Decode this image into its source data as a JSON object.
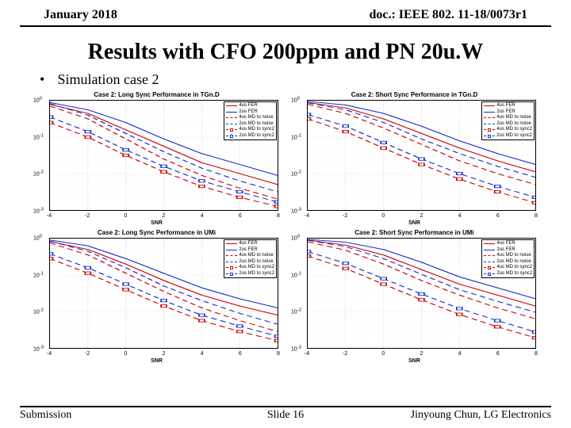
{
  "header": {
    "date": "January 2018",
    "doc": "doc.: IEEE 802. 11-18/0073r1"
  },
  "title": "Results with CFO 200ppm and PN 20u.W",
  "bullet": "Simulation case 2",
  "footer": {
    "left": "Submission",
    "mid": "Slide 16",
    "right": "Jinyoung Chun, LG Electronics"
  },
  "axis": {
    "xticks": [
      -4,
      -2,
      0,
      2,
      4,
      6,
      8
    ],
    "xlim": [
      -4,
      8
    ],
    "yexp": [
      0,
      -1,
      -2,
      -3
    ],
    "ylim_exp": [
      -3,
      0
    ],
    "xlabel": "SNR"
  },
  "legend_items": [
    {
      "label": "4us FER",
      "color": "#cc0000",
      "dash": "solid",
      "marker": false
    },
    {
      "label": "2us FER",
      "color": "#1030cc",
      "dash": "solid",
      "marker": false
    },
    {
      "label": "4us MD to noise",
      "color": "#cc0000",
      "dash": "dashed",
      "marker": false
    },
    {
      "label": "2us MD to noise",
      "color": "#1030cc",
      "dash": "dashed",
      "marker": false
    },
    {
      "label": "4us MD to sync2",
      "color": "#cc0000",
      "dash": "dashed",
      "marker": true
    },
    {
      "label": "2us MD to sync2",
      "color": "#1030cc",
      "dash": "dashed",
      "marker": true
    }
  ],
  "charts": [
    {
      "title": "Case 2: Long Sync Performance in TGn.D",
      "series": [
        {
          "color": "#cc0000",
          "dash": "solid",
          "marker": false,
          "points": [
            [
              -4,
              -0.1
            ],
            [
              -2,
              -0.35
            ],
            [
              0,
              -0.8
            ],
            [
              2,
              -1.25
            ],
            [
              4,
              -1.7
            ],
            [
              6,
              -2.0
            ],
            [
              8,
              -2.3
            ]
          ]
        },
        {
          "color": "#1030cc",
          "dash": "solid",
          "marker": false,
          "points": [
            [
              -4,
              -0.05
            ],
            [
              -2,
              -0.25
            ],
            [
              0,
              -0.6
            ],
            [
              2,
              -1.05
            ],
            [
              4,
              -1.45
            ],
            [
              6,
              -1.75
            ],
            [
              8,
              -2.05
            ]
          ]
        },
        {
          "color": "#cc0000",
          "dash": "dashed",
          "marker": false,
          "points": [
            [
              -4,
              -0.15
            ],
            [
              -2,
              -0.5
            ],
            [
              0,
              -1.05
            ],
            [
              2,
              -1.6
            ],
            [
              4,
              -2.05
            ],
            [
              6,
              -2.4
            ],
            [
              8,
              -2.7
            ]
          ]
        },
        {
          "color": "#1030cc",
          "dash": "dashed",
          "marker": false,
          "points": [
            [
              -4,
              -0.08
            ],
            [
              -2,
              -0.4
            ],
            [
              0,
              -0.9
            ],
            [
              2,
              -1.4
            ],
            [
              4,
              -1.85
            ],
            [
              6,
              -2.2
            ],
            [
              8,
              -2.5
            ]
          ]
        },
        {
          "color": "#cc0000",
          "dash": "dashed",
          "marker": true,
          "points": [
            [
              -4,
              -0.6
            ],
            [
              -2,
              -1.0
            ],
            [
              0,
              -1.5
            ],
            [
              2,
              -1.95
            ],
            [
              4,
              -2.35
            ],
            [
              6,
              -2.65
            ],
            [
              8,
              -2.9
            ]
          ]
        },
        {
          "color": "#1030cc",
          "dash": "dashed",
          "marker": true,
          "points": [
            [
              -4,
              -0.45
            ],
            [
              -2,
              -0.85
            ],
            [
              0,
              -1.35
            ],
            [
              2,
              -1.8
            ],
            [
              4,
              -2.2
            ],
            [
              6,
              -2.5
            ],
            [
              8,
              -2.78
            ]
          ]
        }
      ]
    },
    {
      "title": "Case 2: Short Sync Performance in TGn.D",
      "series": [
        {
          "color": "#cc0000",
          "dash": "solid",
          "marker": false,
          "points": [
            [
              -4,
              -0.05
            ],
            [
              -2,
              -0.2
            ],
            [
              0,
              -0.5
            ],
            [
              2,
              -0.9
            ],
            [
              4,
              -1.3
            ],
            [
              6,
              -1.65
            ],
            [
              8,
              -1.95
            ]
          ]
        },
        {
          "color": "#1030cc",
          "dash": "solid",
          "marker": false,
          "points": [
            [
              -4,
              -0.02
            ],
            [
              -2,
              -0.12
            ],
            [
              0,
              -0.35
            ],
            [
              2,
              -0.7
            ],
            [
              4,
              -1.1
            ],
            [
              6,
              -1.45
            ],
            [
              8,
              -1.75
            ]
          ]
        },
        {
          "color": "#cc0000",
          "dash": "dashed",
          "marker": false,
          "points": [
            [
              -4,
              -0.1
            ],
            [
              -2,
              -0.35
            ],
            [
              0,
              -0.75
            ],
            [
              2,
              -1.2
            ],
            [
              4,
              -1.65
            ],
            [
              6,
              -2.0
            ],
            [
              8,
              -2.3
            ]
          ]
        },
        {
          "color": "#1030cc",
          "dash": "dashed",
          "marker": false,
          "points": [
            [
              -4,
              -0.06
            ],
            [
              -2,
              -0.25
            ],
            [
              0,
              -0.6
            ],
            [
              2,
              -1.05
            ],
            [
              4,
              -1.45
            ],
            [
              6,
              -1.8
            ],
            [
              8,
              -2.1
            ]
          ]
        },
        {
          "color": "#cc0000",
          "dash": "dashed",
          "marker": true,
          "points": [
            [
              -4,
              -0.5
            ],
            [
              -2,
              -0.85
            ],
            [
              0,
              -1.3
            ],
            [
              2,
              -1.75
            ],
            [
              4,
              -2.15
            ],
            [
              6,
              -2.5
            ],
            [
              8,
              -2.8
            ]
          ]
        },
        {
          "color": "#1030cc",
          "dash": "dashed",
          "marker": true,
          "points": [
            [
              -4,
              -0.38
            ],
            [
              -2,
              -0.7
            ],
            [
              0,
              -1.15
            ],
            [
              2,
              -1.6
            ],
            [
              4,
              -2.0
            ],
            [
              6,
              -2.35
            ],
            [
              8,
              -2.65
            ]
          ]
        }
      ]
    },
    {
      "title": "Case 2: Long Sync Performance in UMi",
      "series": [
        {
          "color": "#cc0000",
          "dash": "solid",
          "marker": false,
          "points": [
            [
              -4,
              -0.08
            ],
            [
              -2,
              -0.3
            ],
            [
              0,
              -0.7
            ],
            [
              2,
              -1.15
            ],
            [
              4,
              -1.55
            ],
            [
              6,
              -1.85
            ],
            [
              8,
              -2.1
            ]
          ]
        },
        {
          "color": "#1030cc",
          "dash": "solid",
          "marker": false,
          "points": [
            [
              -4,
              -0.04
            ],
            [
              -2,
              -0.2
            ],
            [
              0,
              -0.55
            ],
            [
              2,
              -0.95
            ],
            [
              4,
              -1.35
            ],
            [
              6,
              -1.65
            ],
            [
              8,
              -1.9
            ]
          ]
        },
        {
          "color": "#cc0000",
          "dash": "dashed",
          "marker": false,
          "points": [
            [
              -4,
              -0.12
            ],
            [
              -2,
              -0.45
            ],
            [
              0,
              -0.95
            ],
            [
              2,
              -1.45
            ],
            [
              4,
              -1.9
            ],
            [
              6,
              -2.25
            ],
            [
              8,
              -2.55
            ]
          ]
        },
        {
          "color": "#1030cc",
          "dash": "dashed",
          "marker": false,
          "points": [
            [
              -4,
              -0.07
            ],
            [
              -2,
              -0.35
            ],
            [
              0,
              -0.8
            ],
            [
              2,
              -1.3
            ],
            [
              4,
              -1.7
            ],
            [
              6,
              -2.05
            ],
            [
              8,
              -2.35
            ]
          ]
        },
        {
          "color": "#cc0000",
          "dash": "dashed",
          "marker": true,
          "points": [
            [
              -4,
              -0.55
            ],
            [
              -2,
              -0.95
            ],
            [
              0,
              -1.4
            ],
            [
              2,
              -1.85
            ],
            [
              4,
              -2.25
            ],
            [
              6,
              -2.55
            ],
            [
              8,
              -2.8
            ]
          ]
        },
        {
          "color": "#1030cc",
          "dash": "dashed",
          "marker": true,
          "points": [
            [
              -4,
              -0.42
            ],
            [
              -2,
              -0.8
            ],
            [
              0,
              -1.25
            ],
            [
              2,
              -1.7
            ],
            [
              4,
              -2.1
            ],
            [
              6,
              -2.4
            ],
            [
              8,
              -2.68
            ]
          ]
        }
      ]
    },
    {
      "title": "Case 2: Short Sync Performance in UMi",
      "series": [
        {
          "color": "#cc0000",
          "dash": "solid",
          "marker": false,
          "points": [
            [
              -4,
              -0.04
            ],
            [
              -2,
              -0.18
            ],
            [
              0,
              -0.45
            ],
            [
              2,
              -0.85
            ],
            [
              4,
              -1.25
            ],
            [
              6,
              -1.55
            ],
            [
              8,
              -1.85
            ]
          ]
        },
        {
          "color": "#1030cc",
          "dash": "solid",
          "marker": false,
          "points": [
            [
              -4,
              -0.02
            ],
            [
              -2,
              -0.1
            ],
            [
              0,
              -0.3
            ],
            [
              2,
              -0.65
            ],
            [
              4,
              -1.05
            ],
            [
              6,
              -1.35
            ],
            [
              8,
              -1.65
            ]
          ]
        },
        {
          "color": "#cc0000",
          "dash": "dashed",
          "marker": false,
          "points": [
            [
              -4,
              -0.09
            ],
            [
              -2,
              -0.32
            ],
            [
              0,
              -0.7
            ],
            [
              2,
              -1.15
            ],
            [
              4,
              -1.55
            ],
            [
              6,
              -1.9
            ],
            [
              8,
              -2.2
            ]
          ]
        },
        {
          "color": "#1030cc",
          "dash": "dashed",
          "marker": false,
          "points": [
            [
              -4,
              -0.05
            ],
            [
              -2,
              -0.22
            ],
            [
              0,
              -0.55
            ],
            [
              2,
              -0.98
            ],
            [
              4,
              -1.4
            ],
            [
              6,
              -1.72
            ],
            [
              8,
              -2.02
            ]
          ]
        },
        {
          "color": "#cc0000",
          "dash": "dashed",
          "marker": true,
          "points": [
            [
              -4,
              -0.48
            ],
            [
              -2,
              -0.82
            ],
            [
              0,
              -1.25
            ],
            [
              2,
              -1.68
            ],
            [
              4,
              -2.08
            ],
            [
              6,
              -2.42
            ],
            [
              8,
              -2.72
            ]
          ]
        },
        {
          "color": "#1030cc",
          "dash": "dashed",
          "marker": true,
          "points": [
            [
              -4,
              -0.36
            ],
            [
              -2,
              -0.68
            ],
            [
              0,
              -1.1
            ],
            [
              2,
              -1.52
            ],
            [
              4,
              -1.92
            ],
            [
              6,
              -2.25
            ],
            [
              8,
              -2.56
            ]
          ]
        }
      ]
    }
  ],
  "colors": {
    "grid_major": "#cccccc",
    "grid_minor": "#e6e6e6"
  }
}
